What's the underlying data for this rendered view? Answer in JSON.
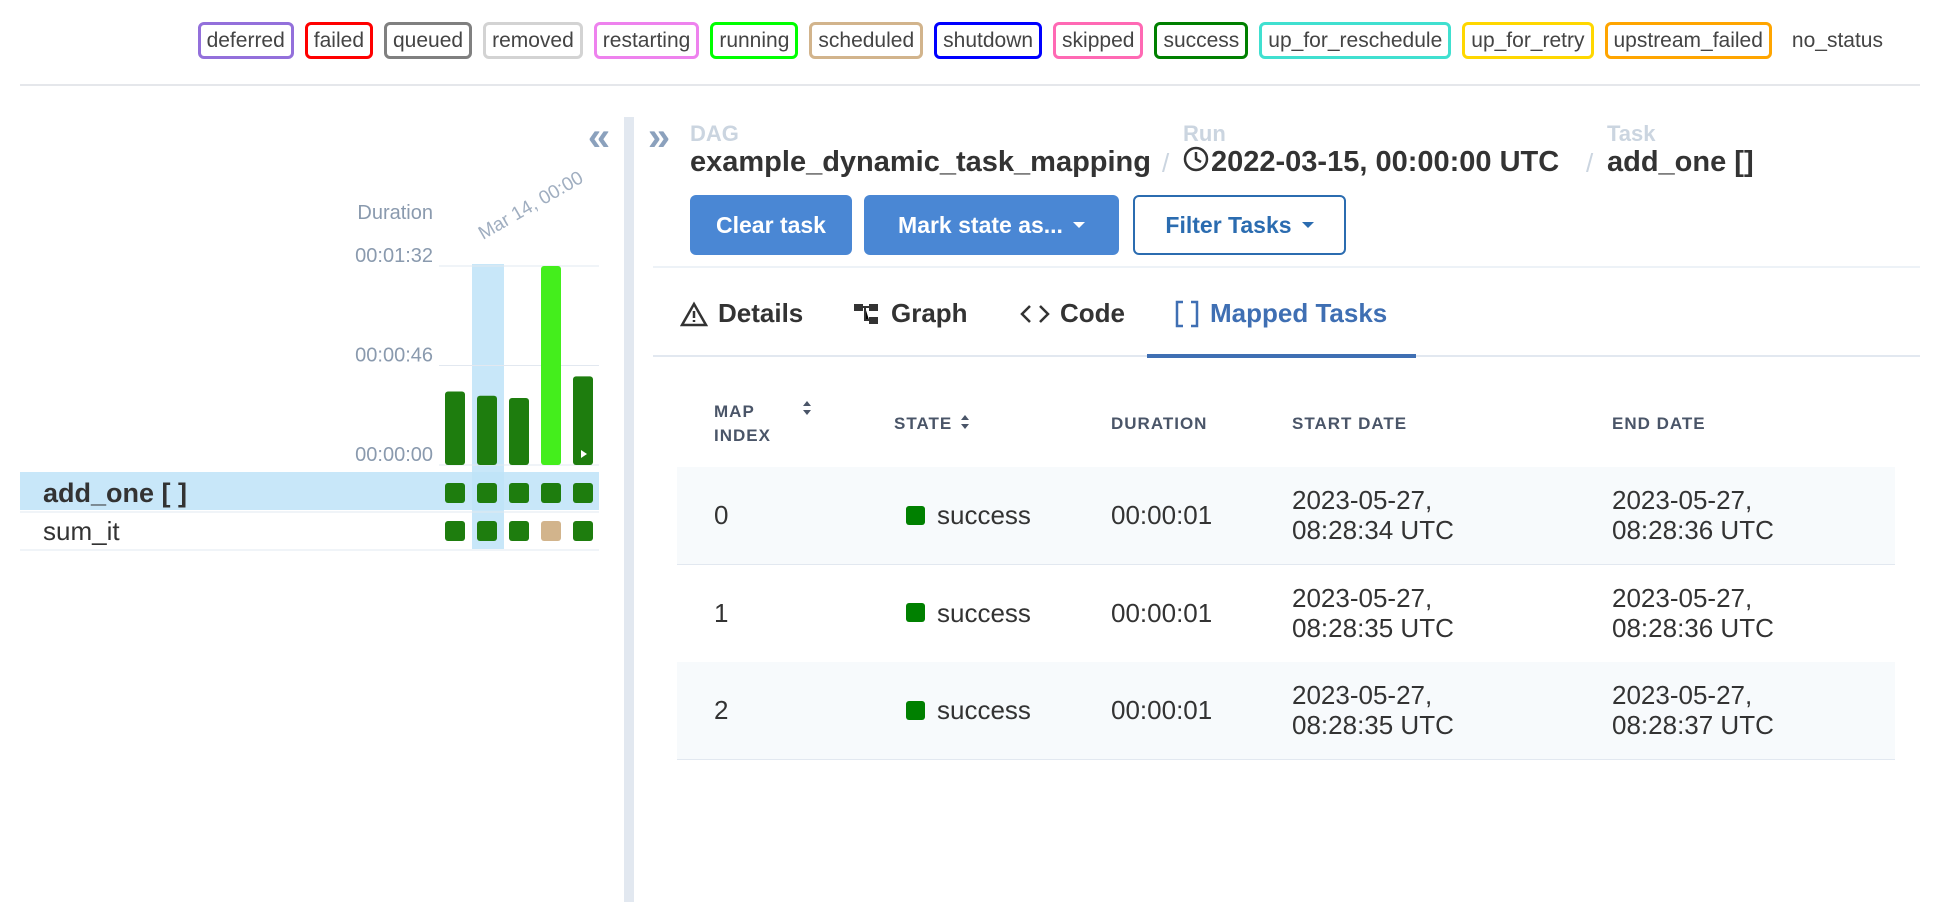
{
  "legend": [
    {
      "label": "deferred",
      "color": "#9370db"
    },
    {
      "label": "failed",
      "color": "#ff0000"
    },
    {
      "label": "queued",
      "color": "#808080"
    },
    {
      "label": "removed",
      "color": "#d3d3d3"
    },
    {
      "label": "restarting",
      "color": "#ee82ee"
    },
    {
      "label": "running",
      "color": "#00ff00"
    },
    {
      "label": "scheduled",
      "color": "#d2b48c"
    },
    {
      "label": "shutdown",
      "color": "#0000ff"
    },
    {
      "label": "skipped",
      "color": "#ff69b4"
    },
    {
      "label": "success",
      "color": "#008000"
    },
    {
      "label": "up_for_reschedule",
      "color": "#40e0d0"
    },
    {
      "label": "up_for_retry",
      "color": "#ffd700"
    },
    {
      "label": "upstream_failed",
      "color": "#ffa500"
    },
    {
      "label": "no_status",
      "color": "#ffffff"
    }
  ],
  "grid": {
    "duration_label": "Duration",
    "date_label": "Mar 14, 00:00",
    "ylim": [
      0,
      92
    ],
    "yticks": [
      {
        "value": 0,
        "label": "00:00:00"
      },
      {
        "value": 46,
        "label": "00:00:46"
      },
      {
        "value": 92,
        "label": "00:01:32"
      }
    ],
    "durations": [
      34,
      32,
      31,
      92,
      41
    ],
    "run_colors": [
      "#1e7d0e",
      "#1e7d0e",
      "#1e7d0e",
      "#44ee1c",
      "#1e7d0e"
    ],
    "tasks": [
      {
        "label": "add_one [ ]",
        "colors": [
          "#1e7d0e",
          "#1e7d0e",
          "#1e7d0e",
          "#1e7d0e",
          "#1e7d0e"
        ]
      },
      {
        "label": "sum_it",
        "colors": [
          "#1e7d0e",
          "#1e7d0e",
          "#1e7d0e",
          "#d2b48c",
          "#1e7d0e"
        ]
      }
    ]
  },
  "breadcrumb": [
    {
      "label": "DAG",
      "value": "example_dynamic_task_mapping"
    },
    {
      "label": "Run",
      "value": "2022-03-15, 00:00:00 UTC"
    },
    {
      "label": "Task",
      "value": "add_one []"
    }
  ],
  "buttons": [
    "Clear task",
    "Mark state as...",
    "Filter Tasks"
  ],
  "tabs": [
    "Details",
    "Graph",
    "Code",
    "Mapped Tasks"
  ],
  "table": {
    "headers": [
      "MAP INDEX",
      "STATE",
      "DURATION",
      "START DATE",
      "END DATE"
    ],
    "rows": [
      [
        "0",
        "success",
        "00:00:01",
        "2023-05-27, 08:28:34 UTC",
        "2023-05-27, 08:28:36 UTC"
      ],
      [
        "1",
        "success",
        "00:00:01",
        "2023-05-27, 08:28:35 UTC",
        "2023-05-27, 08:28:36 UTC"
      ],
      [
        "2",
        "success",
        "00:00:01",
        "2023-05-27, 08:28:35 UTC",
        "2023-05-27, 08:28:37 UTC"
      ]
    ]
  }
}
